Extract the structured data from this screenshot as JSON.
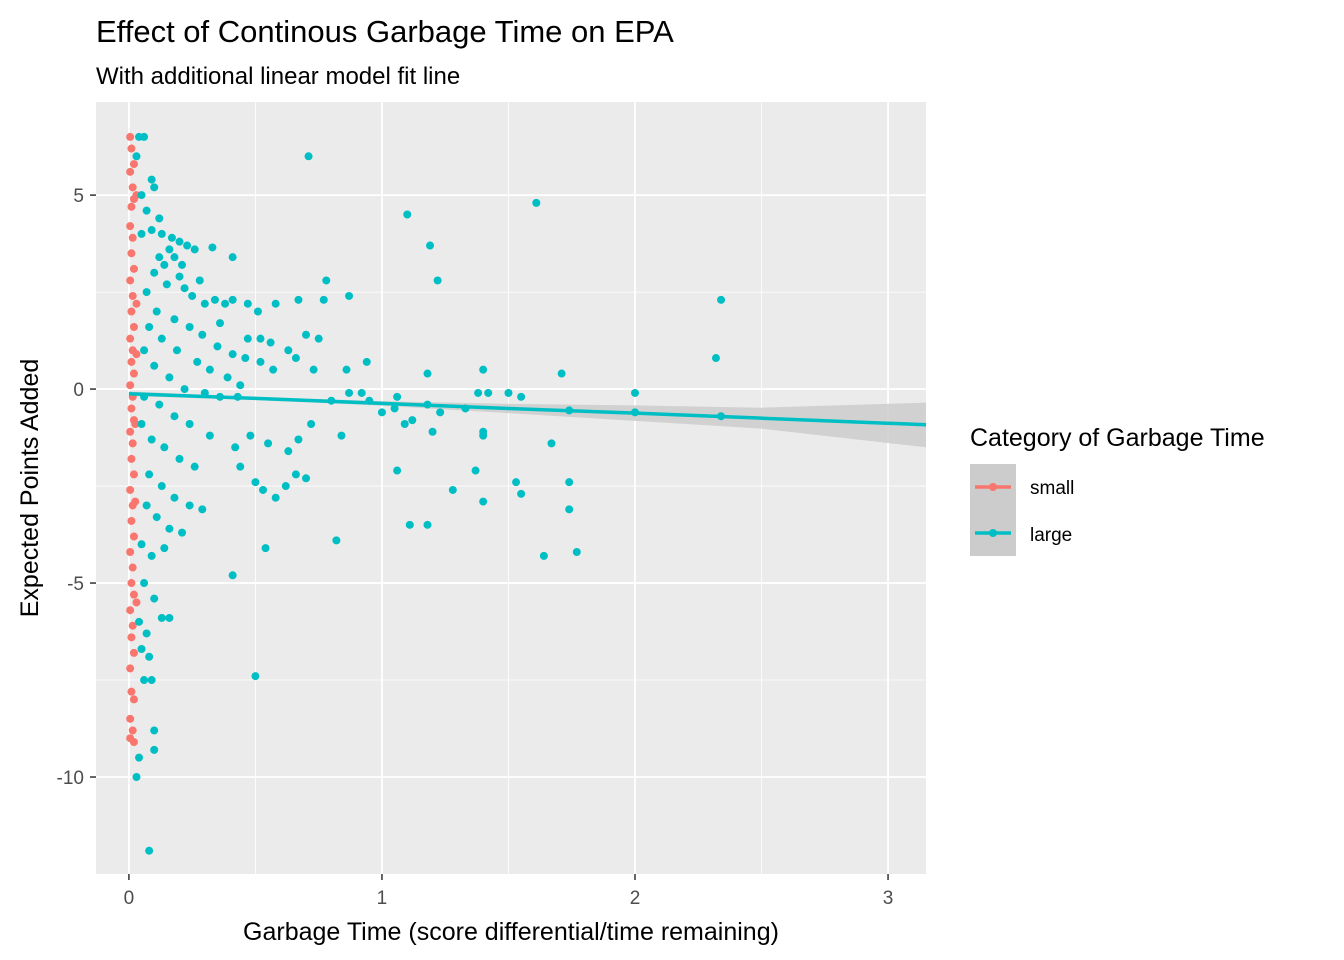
{
  "chart_data": {
    "type": "scatter",
    "title": "Effect of Continous Garbage Time on EPA",
    "subtitle": "With additional linear model fit line",
    "xlabel": "Garbage Time (score differential/time remaining)",
    "ylabel": "Expected Points Added",
    "xlim": [
      -0.13,
      3.15
    ],
    "ylim": [
      -12.5,
      7.4
    ],
    "x_ticks": [
      0,
      1,
      2,
      3
    ],
    "x_tick_labels": [
      "0",
      "1",
      "2",
      "3"
    ],
    "y_ticks": [
      -10,
      -5,
      0,
      5
    ],
    "y_tick_labels": [
      "-10",
      "-5",
      "0",
      "5"
    ],
    "grid": true,
    "background": "#ebebeb",
    "legend": {
      "title": "Category of Garbage Time",
      "position": "right",
      "entries": [
        "small",
        "large"
      ]
    },
    "series": [
      {
        "name": "small",
        "color": "#f8766d",
        "points": [
          [
            0.005,
            6.5
          ],
          [
            0.01,
            6.2
          ],
          [
            0.02,
            5.8
          ],
          [
            0.005,
            5.6
          ],
          [
            0.015,
            5.2
          ],
          [
            0.02,
            4.9
          ],
          [
            0.01,
            4.7
          ],
          [
            0.005,
            4.2
          ],
          [
            0.015,
            3.9
          ],
          [
            0.01,
            3.5
          ],
          [
            0.02,
            3.1
          ],
          [
            0.005,
            2.8
          ],
          [
            0.015,
            2.4
          ],
          [
            0.01,
            2.0
          ],
          [
            0.02,
            1.6
          ],
          [
            0.005,
            1.3
          ],
          [
            0.015,
            1.0
          ],
          [
            0.01,
            0.7
          ],
          [
            0.02,
            0.4
          ],
          [
            0.005,
            0.1
          ],
          [
            0.015,
            -0.2
          ],
          [
            0.01,
            -0.5
          ],
          [
            0.02,
            -0.8
          ],
          [
            0.005,
            -1.1
          ],
          [
            0.015,
            -1.4
          ],
          [
            0.01,
            -1.8
          ],
          [
            0.02,
            -2.2
          ],
          [
            0.005,
            -2.6
          ],
          [
            0.015,
            -3.0
          ],
          [
            0.01,
            -3.4
          ],
          [
            0.02,
            -3.8
          ],
          [
            0.005,
            -4.2
          ],
          [
            0.015,
            -4.6
          ],
          [
            0.01,
            -5.0
          ],
          [
            0.02,
            -5.3
          ],
          [
            0.005,
            -5.7
          ],
          [
            0.015,
            -6.1
          ],
          [
            0.01,
            -6.4
          ],
          [
            0.02,
            -6.8
          ],
          [
            0.005,
            -7.2
          ],
          [
            0.01,
            -7.8
          ],
          [
            0.02,
            -8.0
          ],
          [
            0.005,
            -8.5
          ],
          [
            0.015,
            -8.8
          ],
          [
            0.005,
            -9.0
          ],
          [
            0.02,
            -9.1
          ],
          [
            0.03,
            5.0
          ],
          [
            0.03,
            -5.5
          ],
          [
            0.03,
            2.2
          ],
          [
            0.025,
            -2.9
          ],
          [
            0.03,
            0.9
          ],
          [
            0.025,
            -0.9
          ]
        ]
      },
      {
        "name": "large",
        "color": "#00bfc4",
        "points": [
          [
            0.04,
            6.5
          ],
          [
            0.06,
            6.5
          ],
          [
            0.03,
            6.0
          ],
          [
            0.09,
            5.4
          ],
          [
            0.05,
            5.0
          ],
          [
            0.1,
            5.2
          ],
          [
            0.07,
            4.6
          ],
          [
            0.12,
            4.4
          ],
          [
            0.09,
            4.1
          ],
          [
            0.05,
            4.0
          ],
          [
            0.13,
            4.0
          ],
          [
            0.17,
            3.9
          ],
          [
            0.2,
            3.8
          ],
          [
            0.16,
            3.6
          ],
          [
            0.23,
            3.7
          ],
          [
            0.26,
            3.6
          ],
          [
            0.33,
            3.65
          ],
          [
            0.12,
            3.4
          ],
          [
            0.18,
            3.4
          ],
          [
            0.14,
            3.2
          ],
          [
            0.21,
            3.2
          ],
          [
            0.41,
            3.4
          ],
          [
            0.1,
            3.0
          ],
          [
            0.2,
            2.9
          ],
          [
            0.28,
            2.8
          ],
          [
            0.34,
            2.3
          ],
          [
            0.38,
            2.2
          ],
          [
            0.22,
            2.6
          ],
          [
            0.15,
            2.7
          ],
          [
            0.25,
            2.4
          ],
          [
            0.3,
            2.2
          ],
          [
            0.07,
            2.5
          ],
          [
            0.11,
            2.0
          ],
          [
            0.18,
            1.8
          ],
          [
            0.24,
            1.6
          ],
          [
            0.29,
            1.4
          ],
          [
            0.35,
            1.1
          ],
          [
            0.41,
            0.9
          ],
          [
            0.46,
            0.8
          ],
          [
            0.52,
            0.7
          ],
          [
            0.57,
            0.5
          ],
          [
            0.08,
            1.6
          ],
          [
            0.13,
            1.3
          ],
          [
            0.19,
            1.0
          ],
          [
            0.27,
            0.7
          ],
          [
            0.32,
            0.5
          ],
          [
            0.39,
            0.3
          ],
          [
            0.44,
            0.1
          ],
          [
            0.06,
            1.0
          ],
          [
            0.1,
            0.6
          ],
          [
            0.16,
            0.3
          ],
          [
            0.22,
            0.0
          ],
          [
            0.3,
            -0.1
          ],
          [
            0.36,
            -0.2
          ],
          [
            0.43,
            -0.2
          ],
          [
            0.06,
            -0.2
          ],
          [
            0.12,
            -0.4
          ],
          [
            0.18,
            -0.7
          ],
          [
            0.24,
            -0.9
          ],
          [
            0.32,
            -1.2
          ],
          [
            0.05,
            -0.9
          ],
          [
            0.09,
            -1.3
          ],
          [
            0.14,
            -1.5
          ],
          [
            0.2,
            -1.8
          ],
          [
            0.26,
            -2.0
          ],
          [
            0.08,
            -2.2
          ],
          [
            0.13,
            -2.5
          ],
          [
            0.18,
            -2.8
          ],
          [
            0.24,
            -3.0
          ],
          [
            0.29,
            -3.1
          ],
          [
            0.07,
            -3.0
          ],
          [
            0.11,
            -3.3
          ],
          [
            0.16,
            -3.6
          ],
          [
            0.21,
            -3.7
          ],
          [
            0.05,
            -4.0
          ],
          [
            0.09,
            -4.3
          ],
          [
            0.14,
            -4.1
          ],
          [
            0.06,
            -5.0
          ],
          [
            0.1,
            -5.4
          ],
          [
            0.13,
            -5.9
          ],
          [
            0.16,
            -5.9
          ],
          [
            0.04,
            -6.0
          ],
          [
            0.07,
            -6.3
          ],
          [
            0.05,
            -6.7
          ],
          [
            0.06,
            -7.5
          ],
          [
            0.09,
            -7.5
          ],
          [
            0.08,
            -6.9
          ],
          [
            0.1,
            -8.8
          ],
          [
            0.04,
            -9.5
          ],
          [
            0.1,
            -9.3
          ],
          [
            0.03,
            -10.0
          ],
          [
            0.08,
            -11.9
          ],
          [
            0.41,
            -4.8
          ],
          [
            0.54,
            -4.1
          ],
          [
            0.5,
            -7.4
          ],
          [
            0.44,
            -2.0
          ],
          [
            0.5,
            -2.4
          ],
          [
            0.53,
            -2.6
          ],
          [
            0.58,
            -2.8
          ],
          [
            0.62,
            -2.5
          ],
          [
            0.66,
            -2.2
          ],
          [
            0.7,
            -2.3
          ],
          [
            0.42,
            -1.5
          ],
          [
            0.48,
            -1.2
          ],
          [
            0.55,
            -1.4
          ],
          [
            0.63,
            -1.6
          ],
          [
            0.67,
            -1.3
          ],
          [
            0.47,
            1.3
          ],
          [
            0.52,
            1.3
          ],
          [
            0.56,
            1.2
          ],
          [
            0.63,
            1.0
          ],
          [
            0.66,
            0.8
          ],
          [
            0.7,
            1.4
          ],
          [
            0.75,
            1.3
          ],
          [
            0.36,
            1.7
          ],
          [
            0.41,
            2.3
          ],
          [
            0.47,
            2.2
          ],
          [
            0.51,
            2.0
          ],
          [
            0.58,
            2.2
          ],
          [
            0.67,
            2.3
          ],
          [
            0.77,
            2.3
          ],
          [
            0.78,
            2.8
          ],
          [
            0.87,
            2.4
          ],
          [
            0.71,
            6.0
          ],
          [
            0.73,
            0.5
          ],
          [
            0.86,
            0.5
          ],
          [
            0.94,
            0.7
          ],
          [
            0.92,
            -0.1
          ],
          [
            0.87,
            -0.1
          ],
          [
            0.8,
            -0.3
          ],
          [
            0.84,
            -1.2
          ],
          [
            0.72,
            -0.9
          ],
          [
            0.82,
            -3.9
          ],
          [
            0.95,
            -0.3
          ],
          [
            1.0,
            -0.6
          ],
          [
            1.06,
            -0.2
          ],
          [
            1.12,
            -0.8
          ],
          [
            1.18,
            -0.4
          ],
          [
            1.2,
            -1.1
          ],
          [
            1.23,
            -0.6
          ],
          [
            1.05,
            -0.5
          ],
          [
            1.09,
            -0.9
          ],
          [
            1.1,
            4.5
          ],
          [
            1.19,
            3.7
          ],
          [
            1.22,
            2.8
          ],
          [
            1.18,
            0.4
          ],
          [
            1.06,
            -2.1
          ],
          [
            1.11,
            -3.5
          ],
          [
            1.18,
            -3.5
          ],
          [
            1.28,
            -2.6
          ],
          [
            1.37,
            -2.1
          ],
          [
            1.4,
            -2.9
          ],
          [
            1.4,
            -1.2
          ],
          [
            1.4,
            -1.1
          ],
          [
            1.38,
            -0.1
          ],
          [
            1.4,
            0.5
          ],
          [
            1.42,
            -0.1
          ],
          [
            1.5,
            -0.1
          ],
          [
            1.55,
            -0.2
          ],
          [
            1.53,
            -2.4
          ],
          [
            1.55,
            -2.7
          ],
          [
            1.61,
            4.8
          ],
          [
            1.64,
            -4.3
          ],
          [
            1.67,
            -1.4
          ],
          [
            1.71,
            0.4
          ],
          [
            1.74,
            -0.55
          ],
          [
            1.74,
            -2.4
          ],
          [
            1.74,
            -3.1
          ],
          [
            1.77,
            -4.2
          ],
          [
            2.0,
            -0.1
          ],
          [
            2.0,
            -0.6
          ],
          [
            2.32,
            0.8
          ],
          [
            2.34,
            2.3
          ],
          [
            2.34,
            -0.7
          ],
          [
            1.33,
            -0.5
          ]
        ]
      }
    ],
    "fit_line": {
      "series": "large",
      "color": "#00bfc4",
      "band_color": "#cccccc",
      "x": [
        0.0,
        0.5,
        1.0,
        1.5,
        2.0,
        2.5,
        3.15
      ],
      "y": [
        -0.12,
        -0.24,
        -0.37,
        -0.5,
        -0.62,
        -0.75,
        -0.92
      ],
      "lower": [
        -0.18,
        -0.28,
        -0.43,
        -0.62,
        -0.82,
        -1.02,
        -1.5
      ],
      "upper": [
        -0.06,
        -0.2,
        -0.31,
        -0.38,
        -0.42,
        -0.48,
        -0.35
      ]
    }
  }
}
